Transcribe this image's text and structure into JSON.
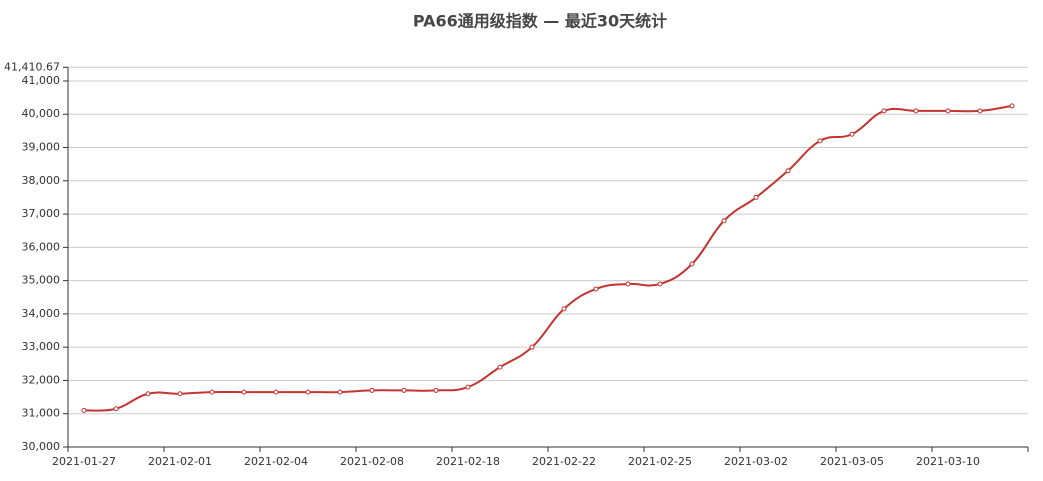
{
  "chart_data": {
    "type": "line",
    "title": "PA66通用级指数 — 最近30天统计",
    "categories": [
      "2021-01-27",
      null,
      null,
      "2021-02-01",
      null,
      null,
      "2021-02-04",
      null,
      null,
      "2021-02-08",
      null,
      null,
      "2021-02-18",
      null,
      null,
      "2021-02-22",
      null,
      null,
      "2021-02-25",
      null,
      null,
      "2021-03-02",
      null,
      null,
      "2021-03-05",
      null,
      null,
      "2021-03-10",
      null,
      null
    ],
    "values": [
      31100,
      31150,
      31600,
      31600,
      31650,
      31650,
      31650,
      31650,
      31650,
      31700,
      31700,
      31700,
      31800,
      32400,
      33000,
      34150,
      34750,
      34900,
      34900,
      35500,
      36800,
      37500,
      38300,
      39200,
      39400,
      40100,
      40100,
      40100,
      40100,
      40250
    ],
    "color": "#c23531",
    "ylim": [
      30000,
      41410.67
    ],
    "yticks": [
      {
        "value": 30000,
        "label": "30,000"
      },
      {
        "value": 31000,
        "label": "31,000"
      },
      {
        "value": 32000,
        "label": "32,000"
      },
      {
        "value": 33000,
        "label": "33,000"
      },
      {
        "value": 34000,
        "label": "34,000"
      },
      {
        "value": 35000,
        "label": "35,000"
      },
      {
        "value": 36000,
        "label": "36,000"
      },
      {
        "value": 37000,
        "label": "37,000"
      },
      {
        "value": 38000,
        "label": "38,000"
      },
      {
        "value": 39000,
        "label": "39,000"
      },
      {
        "value": 40000,
        "label": "40,000"
      },
      {
        "value": 41000,
        "label": "41,000"
      },
      {
        "value": 41410.67,
        "label": "41,410.67"
      }
    ],
    "grid": true,
    "smooth": true
  }
}
